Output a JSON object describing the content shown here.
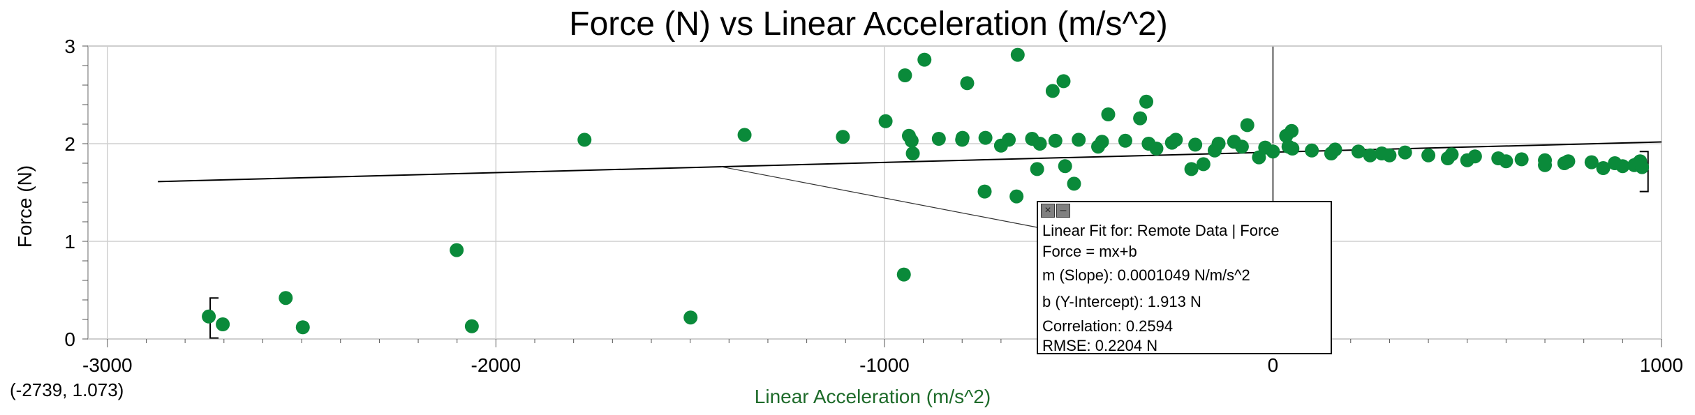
{
  "chart_data": {
    "type": "scatter",
    "title": "Force (N) vs Linear Acceleration (m/s^2)",
    "xlabel": "Linear Acceleration (m/s^2)",
    "ylabel": "Force (N)",
    "xlim": [
      -3050,
      1000
    ],
    "ylim": [
      0,
      3
    ],
    "x_ticks": [
      -3000,
      -2000,
      -1000,
      0,
      1000
    ],
    "y_ticks": [
      0,
      1,
      2,
      3
    ],
    "grid": true,
    "marker_color": "#0a8a3a",
    "series": [
      {
        "points": [
          [
            -2739,
            0.23
          ],
          [
            -2703,
            0.15
          ],
          [
            -2541,
            0.42
          ],
          [
            -2497,
            0.12
          ],
          [
            -2101,
            0.91
          ],
          [
            -2062,
            0.13
          ],
          [
            -1772,
            2.04
          ],
          [
            -1499,
            0.22
          ],
          [
            -1360,
            2.09
          ],
          [
            -1107,
            2.07
          ],
          [
            -950,
            0.66
          ],
          [
            -799,
            2.06
          ],
          [
            -997,
            2.23
          ],
          [
            -937,
            2.08
          ],
          [
            -927,
            1.9
          ],
          [
            -947,
            2.7
          ],
          [
            -897,
            2.86
          ],
          [
            -787,
            2.62
          ],
          [
            -657,
            2.91
          ],
          [
            -742,
            1.51
          ],
          [
            -660,
            1.46
          ],
          [
            -607,
            1.74
          ],
          [
            -567,
            2.54
          ],
          [
            -539,
            2.64
          ],
          [
            -535,
            1.77
          ],
          [
            -512,
            1.59
          ],
          [
            -424,
            2.3
          ],
          [
            -342,
            2.26
          ],
          [
            -326,
            2.43
          ],
          [
            -210,
            1.74
          ],
          [
            -179,
            1.79
          ],
          [
            -66,
            2.19
          ],
          [
            -36,
            1.86
          ],
          [
            34,
            2.08
          ],
          [
            48,
            2.13
          ],
          [
            -930,
            2.03
          ],
          [
            -860,
            2.05
          ],
          [
            -800,
            2.04
          ],
          [
            -740,
            2.06
          ],
          [
            -680,
            2.04
          ],
          [
            -620,
            2.05
          ],
          [
            -560,
            2.03
          ],
          [
            -500,
            2.04
          ],
          [
            -440,
            2.02
          ],
          [
            -380,
            2.03
          ],
          [
            -320,
            2.0
          ],
          [
            -260,
            2.01
          ],
          [
            -200,
            1.99
          ],
          [
            -140,
            2.0
          ],
          [
            -80,
            1.97
          ],
          [
            -20,
            1.96
          ],
          [
            40,
            1.97
          ],
          [
            100,
            1.93
          ],
          [
            160,
            1.94
          ],
          [
            220,
            1.92
          ],
          [
            280,
            1.9
          ],
          [
            340,
            1.91
          ],
          [
            400,
            1.88
          ],
          [
            460,
            1.89
          ],
          [
            520,
            1.87
          ],
          [
            580,
            1.85
          ],
          [
            640,
            1.84
          ],
          [
            700,
            1.83
          ],
          [
            760,
            1.82
          ],
          [
            820,
            1.81
          ],
          [
            880,
            1.8
          ],
          [
            930,
            1.78
          ],
          [
            940,
            1.8
          ],
          [
            945,
            1.82
          ],
          [
            950,
            1.76
          ],
          [
            -700,
            1.98
          ],
          [
            -600,
            2.0
          ],
          [
            -450,
            1.97
          ],
          [
            -300,
            1.95
          ],
          [
            -150,
            1.93
          ],
          [
            0,
            1.92
          ],
          [
            150,
            1.9
          ],
          [
            300,
            1.88
          ],
          [
            450,
            1.85
          ],
          [
            600,
            1.82
          ],
          [
            750,
            1.8
          ],
          [
            900,
            1.77
          ],
          [
            50,
            1.95
          ],
          [
            250,
            1.88
          ],
          [
            500,
            1.83
          ],
          [
            -100,
            2.02
          ],
          [
            -250,
            2.04
          ],
          [
            700,
            1.78
          ],
          [
            850,
            1.75
          ]
        ]
      }
    ],
    "fit": {
      "slope": 0.0001049,
      "intercept": 1.913,
      "x_range": [
        -2739,
        951
      ]
    }
  },
  "annotation": {
    "lines": [
      "Linear Fit for: Remote Data | Force",
      "Force = mx+b",
      "m (Slope): 0.0001049 N/m/s^2",
      "b (Y-Intercept): 1.913 N",
      "Correlation: 0.2594",
      "RMSE: 0.2204 N"
    ],
    "close_icon": "close-icon",
    "collapse_icon": "collapse-icon"
  },
  "coordinate_readout": "(-2739, 1.073)"
}
